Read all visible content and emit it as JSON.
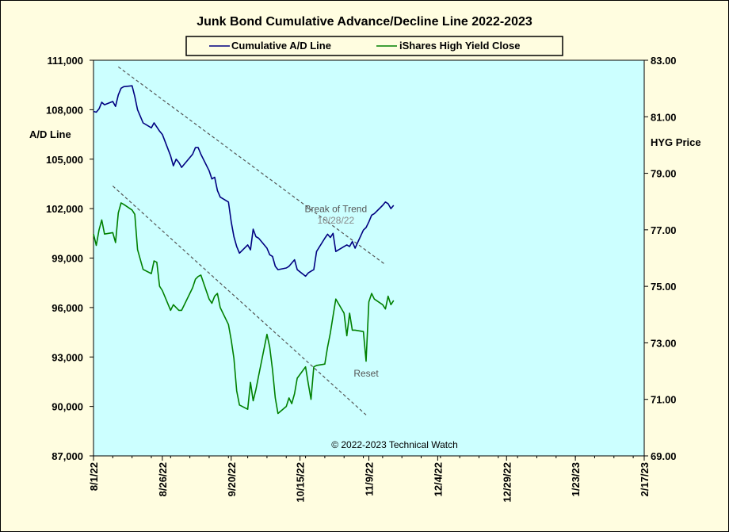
{
  "chart_data": {
    "type": "line",
    "title": "Junk Bond Cumulative  Advance/Decline  Line 2022-2023",
    "ylabel_left": "A/D Line",
    "ylabel_right": "HYG Price",
    "copyright": "© 2022-2023  Technical  Watch",
    "legend_position": "top",
    "ylim_left": [
      87000,
      111000
    ],
    "ylim_right": [
      69.0,
      83.0
    ],
    "yticks_left": [
      "111,000",
      "108,000",
      "105,000",
      "102,000",
      "99,000",
      "96,000",
      "93,000",
      "90,000",
      "87,000"
    ],
    "yticks_right": [
      "83.00",
      "81.00",
      "79.00",
      "77.00",
      "75.00",
      "73.00",
      "71.00",
      "69.00"
    ],
    "xlim": [
      "2022-08-01",
      "2023-02-17"
    ],
    "x_tick_labels": [
      "8/1/22",
      "8/26/22",
      "9/20/22",
      "10/15/22",
      "11/9/22",
      "12/4/22",
      "12/29/22",
      "1/23/23",
      "2/17/23"
    ],
    "x_tick_dates": [
      "2022-08-01",
      "2022-08-26",
      "2022-09-20",
      "2022-10-15",
      "2022-11-09",
      "2022-12-04",
      "2022-12-29",
      "2023-01-23",
      "2023-02-17"
    ],
    "series": [
      {
        "name": "Cumulative A/D Line",
        "axis": "left",
        "color": "#000080",
        "x": [
          "2022-08-01",
          "2022-08-02",
          "2022-08-03",
          "2022-08-04",
          "2022-08-05",
          "2022-08-08",
          "2022-08-09",
          "2022-08-10",
          "2022-08-11",
          "2022-08-12",
          "2022-08-15",
          "2022-08-16",
          "2022-08-17",
          "2022-08-18",
          "2022-08-19",
          "2022-08-22",
          "2022-08-23",
          "2022-08-24",
          "2022-08-25",
          "2022-08-26",
          "2022-08-29",
          "2022-08-30",
          "2022-08-31",
          "2022-09-01",
          "2022-09-02",
          "2022-09-06",
          "2022-09-07",
          "2022-09-08",
          "2022-09-09",
          "2022-09-12",
          "2022-09-13",
          "2022-09-14",
          "2022-09-15",
          "2022-09-16",
          "2022-09-19",
          "2022-09-20",
          "2022-09-21",
          "2022-09-22",
          "2022-09-23",
          "2022-09-26",
          "2022-09-27",
          "2022-09-28",
          "2022-09-29",
          "2022-09-30",
          "2022-10-03",
          "2022-10-04",
          "2022-10-05",
          "2022-10-06",
          "2022-10-07",
          "2022-10-10",
          "2022-10-11",
          "2022-10-12",
          "2022-10-13",
          "2022-10-14",
          "2022-10-17",
          "2022-10-18",
          "2022-10-19",
          "2022-10-20",
          "2022-10-21",
          "2022-10-24",
          "2022-10-25",
          "2022-10-26",
          "2022-10-27",
          "2022-10-28",
          "2022-10-31",
          "2022-11-01",
          "2022-11-02",
          "2022-11-03",
          "2022-11-04",
          "2022-11-07",
          "2022-11-08",
          "2022-11-09",
          "2022-11-10",
          "2022-11-11",
          "2022-11-14",
          "2022-11-15",
          "2022-11-16",
          "2022-11-17",
          "2022-11-18"
        ],
        "values": [
          107900,
          107850,
          108050,
          108450,
          108300,
          108500,
          108200,
          108900,
          109300,
          109400,
          109450,
          108800,
          108000,
          107600,
          107200,
          106900,
          107200,
          106950,
          106700,
          106500,
          105200,
          104600,
          105000,
          104800,
          104500,
          105300,
          105700,
          105700,
          105300,
          104300,
          103800,
          103900,
          103100,
          102700,
          102400,
          101200,
          100300,
          99700,
          99300,
          99800,
          99500,
          100750,
          100300,
          100200,
          99600,
          99200,
          99100,
          98500,
          98300,
          98400,
          98500,
          98700,
          98900,
          98300,
          97900,
          98100,
          98200,
          98300,
          99400,
          100200,
          100450,
          100250,
          100500,
          99400,
          99700,
          99800,
          99700,
          100000,
          99600,
          100700,
          100850,
          101200,
          101600,
          101700,
          102200,
          102400,
          102300,
          102000,
          102200
        ]
      },
      {
        "name": "iShares High Yield Close",
        "axis": "right",
        "color": "#008000",
        "x": [
          "2022-08-01",
          "2022-08-02",
          "2022-08-03",
          "2022-08-04",
          "2022-08-05",
          "2022-08-08",
          "2022-08-09",
          "2022-08-10",
          "2022-08-11",
          "2022-08-12",
          "2022-08-15",
          "2022-08-16",
          "2022-08-17",
          "2022-08-18",
          "2022-08-19",
          "2022-08-22",
          "2022-08-23",
          "2022-08-24",
          "2022-08-25",
          "2022-08-26",
          "2022-08-29",
          "2022-08-30",
          "2022-08-31",
          "2022-09-01",
          "2022-09-02",
          "2022-09-06",
          "2022-09-07",
          "2022-09-08",
          "2022-09-09",
          "2022-09-12",
          "2022-09-13",
          "2022-09-14",
          "2022-09-15",
          "2022-09-16",
          "2022-09-19",
          "2022-09-20",
          "2022-09-21",
          "2022-09-22",
          "2022-09-23",
          "2022-09-26",
          "2022-09-27",
          "2022-09-28",
          "2022-09-29",
          "2022-09-30",
          "2022-10-03",
          "2022-10-04",
          "2022-10-05",
          "2022-10-06",
          "2022-10-07",
          "2022-10-10",
          "2022-10-11",
          "2022-10-12",
          "2022-10-13",
          "2022-10-14",
          "2022-10-17",
          "2022-10-18",
          "2022-10-19",
          "2022-10-20",
          "2022-10-21",
          "2022-10-24",
          "2022-10-25",
          "2022-10-26",
          "2022-10-27",
          "2022-10-28",
          "2022-10-31",
          "2022-11-01",
          "2022-11-02",
          "2022-11-03",
          "2022-11-04",
          "2022-11-07",
          "2022-11-08",
          "2022-11-09",
          "2022-11-10",
          "2022-11-11",
          "2022-11-14",
          "2022-11-15",
          "2022-11-16",
          "2022-11-17",
          "2022-11-18"
        ],
        "values": [
          76.85,
          76.45,
          77.0,
          77.35,
          76.85,
          76.9,
          76.55,
          77.6,
          77.95,
          77.9,
          77.7,
          77.55,
          76.3,
          75.95,
          75.6,
          75.45,
          75.9,
          75.85,
          75.0,
          74.85,
          74.15,
          74.35,
          74.25,
          74.15,
          74.15,
          74.95,
          75.25,
          75.35,
          75.4,
          74.55,
          74.4,
          74.65,
          74.75,
          74.25,
          73.65,
          73.1,
          72.45,
          71.3,
          70.8,
          70.65,
          71.6,
          70.95,
          71.35,
          71.85,
          73.3,
          72.85,
          72.05,
          71.05,
          70.5,
          70.75,
          71.05,
          70.85,
          71.2,
          71.75,
          72.15,
          71.55,
          71.0,
          72.15,
          72.2,
          72.25,
          72.85,
          73.35,
          73.95,
          74.55,
          74.05,
          73.25,
          74.05,
          73.45,
          73.45,
          73.4,
          72.35,
          74.45,
          74.75,
          74.55,
          74.35,
          74.2,
          74.65,
          74.35,
          74.5
        ]
      }
    ],
    "trendlines": [
      {
        "axis": "left",
        "start": {
          "x": "2022-08-10",
          "y": 110600
        },
        "end": {
          "x": "2022-11-15",
          "y": 98600
        }
      },
      {
        "axis": "right",
        "start": {
          "x": "2022-08-08",
          "y": 78.55
        },
        "end": {
          "x": "2022-11-08",
          "y": 70.45
        }
      }
    ],
    "annotations": [
      {
        "text": "Break of Trend",
        "x": "2022-10-28",
        "y": 101800,
        "axis": "left"
      },
      {
        "text": "10/28/22",
        "x": "2022-10-28",
        "y": 101100,
        "axis": "left"
      },
      {
        "text": "Reset",
        "x": "2022-11-08",
        "y": 71.8,
        "axis": "right"
      }
    ],
    "grid": false
  }
}
